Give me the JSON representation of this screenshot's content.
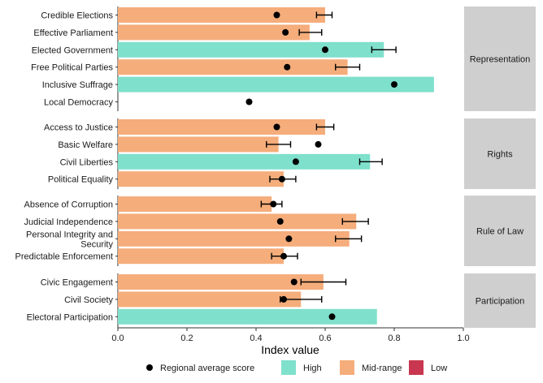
{
  "chart_data": {
    "type": "bar",
    "xlabel": "Index value",
    "xlim": [
      0,
      1.0
    ],
    "x_ticks": [
      "0.0",
      "0.2",
      "0.4",
      "0.6",
      "0.8",
      "1.0"
    ],
    "x_tick_values": [
      0,
      0.2,
      0.4,
      0.6,
      0.8,
      1.0
    ],
    "orientation": "horizontal",
    "grid": false,
    "legend_placement": "bottom",
    "legend": {
      "point_label": "Regional average score",
      "fill_items": [
        {
          "key": "high",
          "label": "High",
          "color": "#7fe0cc"
        },
        {
          "key": "mid",
          "label": "Mid-range",
          "color": "#f5ad7b"
        },
        {
          "key": "low",
          "label": "Low",
          "color": "#c8374f"
        }
      ]
    },
    "panels": [
      {
        "strip": "Representation",
        "categories": [
          {
            "label": "Credible Elections",
            "value": 0.6,
            "band": "mid",
            "avg": 0.46,
            "err": [
              0.575,
              0.62
            ]
          },
          {
            "label": "Effective Parliament",
            "value": 0.555,
            "band": "mid",
            "avg": 0.485,
            "err": [
              0.525,
              0.59
            ]
          },
          {
            "label": "Elected Government",
            "value": 0.77,
            "band": "high",
            "avg": 0.6,
            "err": [
              0.735,
              0.805
            ]
          },
          {
            "label": "Free Political Parties",
            "value": 0.665,
            "band": "mid",
            "avg": 0.49,
            "err": [
              0.63,
              0.7
            ]
          },
          {
            "label": "Inclusive Suffrage",
            "value": 0.915,
            "band": "high",
            "avg": 0.8,
            "err": null
          },
          {
            "label": "Local Democracy",
            "value": 0.0,
            "band": "mid",
            "avg": 0.38,
            "err": null
          }
        ]
      },
      {
        "strip": "Rights",
        "categories": [
          {
            "label": "Access to Justice",
            "value": 0.6,
            "band": "mid",
            "avg": 0.46,
            "err": [
              0.575,
              0.625
            ]
          },
          {
            "label": "Basic Welfare",
            "value": 0.465,
            "band": "mid",
            "avg": 0.58,
            "err": [
              0.43,
              0.5
            ]
          },
          {
            "label": "Civil Liberties",
            "value": 0.73,
            "band": "high",
            "avg": 0.515,
            "err": [
              0.7,
              0.765
            ]
          },
          {
            "label": "Political Equality",
            "value": 0.48,
            "band": "mid",
            "avg": 0.475,
            "err": [
              0.44,
              0.515
            ]
          }
        ]
      },
      {
        "strip": "Rule of Law",
        "categories": [
          {
            "label": "Absence of Corruption",
            "value": 0.445,
            "band": "mid",
            "avg": 0.45,
            "err": [
              0.415,
              0.475
            ]
          },
          {
            "label": "Judicial Independence",
            "value": 0.69,
            "band": "mid",
            "avg": 0.47,
            "err": [
              0.65,
              0.725
            ]
          },
          {
            "label": "Personal Integrity and Security",
            "label_lines": [
              "Personal Integrity and",
              "Security"
            ],
            "value": 0.67,
            "band": "mid",
            "avg": 0.495,
            "err": [
              0.63,
              0.705
            ]
          },
          {
            "label": "Predictable Enforcement",
            "value": 0.48,
            "band": "mid",
            "avg": 0.48,
            "err": [
              0.445,
              0.52
            ]
          }
        ]
      },
      {
        "strip": "Participation",
        "categories": [
          {
            "label": "Civic Engagement",
            "value": 0.595,
            "band": "mid",
            "avg": 0.51,
            "err": [
              0.53,
              0.66
            ]
          },
          {
            "label": "Civil Society",
            "value": 0.53,
            "band": "mid",
            "avg": 0.48,
            "err": [
              0.47,
              0.59
            ]
          },
          {
            "label": "Electoral Participation",
            "value": 0.75,
            "band": "high",
            "avg": 0.62,
            "err": null
          }
        ]
      }
    ]
  }
}
